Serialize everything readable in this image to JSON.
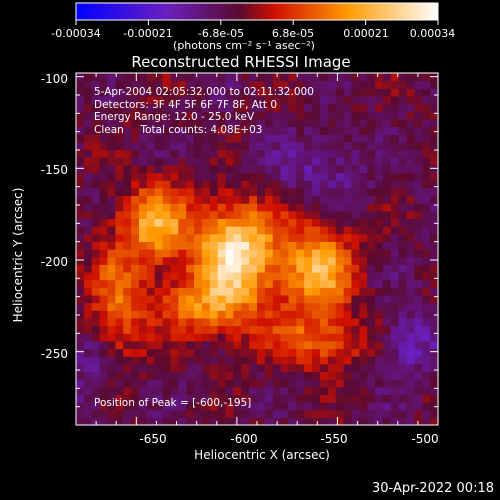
{
  "colorbar": {
    "ticks": [
      "-0.00034",
      "-0.00021",
      "-6.8e-05",
      "6.8e-05",
      "0.00021",
      "0.00034"
    ],
    "unit_label": "(photons cm⁻² s⁻¹ asec⁻²)"
  },
  "chart_data": {
    "type": "heatmap",
    "title": "Reconstructed RHESSI Image",
    "xlabel": "Heliocentric X (arcsec)",
    "ylabel": "Heliocentric Y (arcsec)",
    "xlim": [
      -680,
      -500
    ],
    "ylim": [
      -290,
      -98
    ],
    "x_ticks": [
      "-650",
      "-600",
      "-550",
      "-500"
    ],
    "y_ticks": [
      "-100",
      "-150",
      "-200",
      "-250"
    ],
    "x_tick_values": [
      -650,
      -600,
      -550,
      -500
    ],
    "y_tick_values": [
      -100,
      -150,
      -200,
      -250
    ],
    "colorbar_range": [
      -0.00034,
      0.00034
    ],
    "colormap": "blue-purple-red-yellow-white",
    "peak": [
      -600,
      -195
    ],
    "sources": [
      {
        "x": -600,
        "y": -195,
        "amp": 0.00034,
        "sx": 14,
        "sy": 18
      },
      {
        "x": -640,
        "y": -180,
        "amp": 0.00024,
        "sx": 12,
        "sy": 15
      },
      {
        "x": -560,
        "y": -205,
        "amp": 0.00026,
        "sx": 12,
        "sy": 18
      },
      {
        "x": -615,
        "y": -225,
        "amp": 0.00018,
        "sx": 18,
        "sy": 12
      },
      {
        "x": -560,
        "y": -245,
        "amp": 0.00014,
        "sx": 20,
        "sy": 10
      },
      {
        "x": -660,
        "y": -225,
        "amp": 0.00016,
        "sx": 10,
        "sy": 25
      },
      {
        "x": -560,
        "y": -150,
        "amp": -8e-05,
        "sx": 18,
        "sy": 12
      },
      {
        "x": -515,
        "y": -245,
        "amp": -0.00012,
        "sx": 10,
        "sy": 12
      },
      {
        "x": -670,
        "y": -260,
        "amp": -8e-05,
        "sx": 10,
        "sy": 18
      }
    ],
    "annotations": [
      "5-Apr-2004 02:05:32.000 to 02:11:32.000",
      "Detectors: 3F 4F 5F 6F 7F 8F, Att 0",
      "Energy Range: 12.0 - 25.0 keV",
      "Clean     Total counts: 4.08E+03"
    ],
    "peak_label": "Position of Peak = [-600,-195]"
  },
  "timestamp": "30-Apr-2022 00:18"
}
